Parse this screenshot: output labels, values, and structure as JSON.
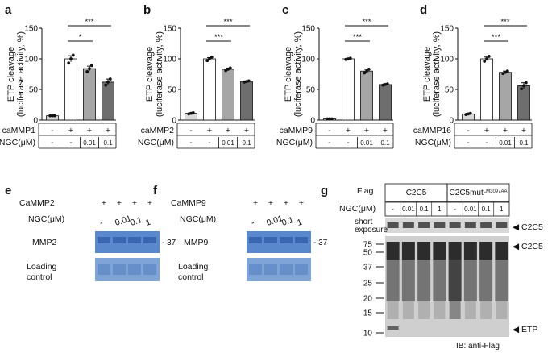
{
  "chart_data": [
    {
      "type": "bar",
      "panel": "a",
      "ylabel": "ETP cleavage\n(luciferase activity, %)",
      "ylim": [
        0,
        150
      ],
      "yticks": [
        0,
        50,
        100,
        150
      ],
      "categories": [
        "1",
        "2",
        "3",
        "4"
      ],
      "values": [
        7,
        100,
        84,
        62
      ],
      "errors": [
        1,
        5,
        4,
        5
      ],
      "points": [
        [
          7,
          7,
          7
        ],
        [
          93,
          100,
          106
        ],
        [
          79,
          84,
          89
        ],
        [
          57,
          62,
          67
        ]
      ],
      "bar_colors": [
        "#d9d9d9",
        "#ffffff",
        "#a6a6a6",
        "#6e6e6e"
      ],
      "rows": [
        {
          "label": "caMMP1",
          "cells": [
            "-",
            "+",
            "+",
            "+"
          ]
        },
        {
          "label": "NGC(μM)",
          "cells": [
            "-",
            "-",
            "0.01",
            "0.1"
          ]
        }
      ],
      "significance": [
        {
          "from": 1,
          "to": 2,
          "text": "*"
        },
        {
          "from": 1,
          "to": 3,
          "text": "***"
        }
      ]
    },
    {
      "type": "bar",
      "panel": "b",
      "ylabel": "ETP cleavage\n(luciferase activity, %)",
      "ylim": [
        0,
        150
      ],
      "yticks": [
        0,
        50,
        100,
        150
      ],
      "categories": [
        "1",
        "2",
        "3",
        "4"
      ],
      "values": [
        11,
        100,
        83,
        63
      ],
      "errors": [
        1,
        2,
        2,
        1
      ],
      "points": [
        [
          10,
          11,
          12
        ],
        [
          97,
          100,
          103
        ],
        [
          81,
          83,
          85
        ],
        [
          62,
          63,
          64
        ]
      ],
      "bar_colors": [
        "#d9d9d9",
        "#ffffff",
        "#a6a6a6",
        "#6e6e6e"
      ],
      "rows": [
        {
          "label": "caMMP2",
          "cells": [
            "-",
            "+",
            "+",
            "+"
          ]
        },
        {
          "label": "NGC(μM)",
          "cells": [
            "-",
            "-",
            "0.01",
            "0.1"
          ]
        }
      ],
      "significance": [
        {
          "from": 1,
          "to": 2,
          "text": "***"
        },
        {
          "from": 1,
          "to": 3,
          "text": "***"
        }
      ]
    },
    {
      "type": "bar",
      "panel": "c",
      "ylabel": "ETP cleavage\n(luciferase activity, %)",
      "ylim": [
        0,
        150
      ],
      "yticks": [
        0,
        50,
        100,
        150
      ],
      "categories": [
        "1",
        "2",
        "3",
        "4"
      ],
      "values": [
        2,
        100,
        80,
        58
      ],
      "errors": [
        0.5,
        1,
        3,
        1
      ],
      "points": [
        [
          2,
          2,
          2
        ],
        [
          99,
          100,
          101
        ],
        [
          77,
          80,
          83
        ],
        [
          57,
          58,
          59
        ]
      ],
      "bar_colors": [
        "#d9d9d9",
        "#ffffff",
        "#a6a6a6",
        "#6e6e6e"
      ],
      "rows": [
        {
          "label": "caMMP9",
          "cells": [
            "-",
            "+",
            "+",
            "+"
          ]
        },
        {
          "label": "NGC(μM)",
          "cells": [
            "-",
            "-",
            "0.01",
            "0.1"
          ]
        }
      ],
      "significance": [
        {
          "from": 1,
          "to": 2,
          "text": "***"
        },
        {
          "from": 1,
          "to": 3,
          "text": "***"
        }
      ]
    },
    {
      "type": "bar",
      "panel": "d",
      "ylabel": "ETP cleavage\n(luciferase activity, %)",
      "ylim": [
        0,
        150
      ],
      "yticks": [
        0,
        50,
        100,
        150
      ],
      "categories": [
        "1",
        "2",
        "3",
        "4"
      ],
      "values": [
        10,
        100,
        78,
        56
      ],
      "errors": [
        1,
        3,
        2,
        5
      ],
      "points": [
        [
          9,
          10,
          11
        ],
        [
          96,
          100,
          104
        ],
        [
          76,
          78,
          80
        ],
        [
          51,
          56,
          61
        ]
      ],
      "bar_colors": [
        "#d9d9d9",
        "#ffffff",
        "#a6a6a6",
        "#6e6e6e"
      ],
      "rows": [
        {
          "label": "caMMP16",
          "cells": [
            "-",
            "+",
            "+",
            "+"
          ]
        },
        {
          "label": "NGC(μM)",
          "cells": [
            "-",
            "-",
            "0.01",
            "0.1"
          ]
        }
      ],
      "significance": [
        {
          "from": 1,
          "to": 2,
          "text": "***"
        },
        {
          "from": 1,
          "to": 3,
          "text": "***"
        }
      ]
    }
  ],
  "gels": [
    {
      "panel": "e",
      "label_row1": "CaMMP2",
      "label_row2": "NGC(μM)",
      "row1": [
        "+",
        "+",
        "+",
        "+"
      ],
      "row2": [
        "-",
        "0.01",
        "0.1",
        "1"
      ],
      "band_label": "MMP2",
      "loading_label": "Loading\ncontrol",
      "marker": "- 37"
    },
    {
      "panel": "f",
      "label_row1": "CaMMP9",
      "label_row2": "NGC(μM)",
      "row1": [
        "+",
        "+",
        "+",
        "+"
      ],
      "row2": [
        "-",
        "0.01",
        "0.1",
        "1"
      ],
      "band_label": "MMP9",
      "loading_label": "Loading\ncontrol",
      "marker": "- 37"
    }
  ],
  "blot": {
    "panel": "g",
    "flag_label": "Flag",
    "group1": "C2C5",
    "group2_main": "C2C5mut",
    "group2_sup": "LM3097AA",
    "ngc_label": "NGC(μM)",
    "ngc_values": [
      "-",
      "0.01",
      "0.1",
      "1",
      "-",
      "0.01",
      "0.1",
      "1"
    ],
    "short_exposure": "short\nexposure",
    "short_band": "◀ C2C5",
    "long_band": "◀ C2C5",
    "etp_band": "◀ ETP",
    "markers": [
      "75",
      "50",
      "37",
      "25",
      "20",
      "15",
      "10"
    ],
    "ib": "IB: anti-Flag"
  }
}
